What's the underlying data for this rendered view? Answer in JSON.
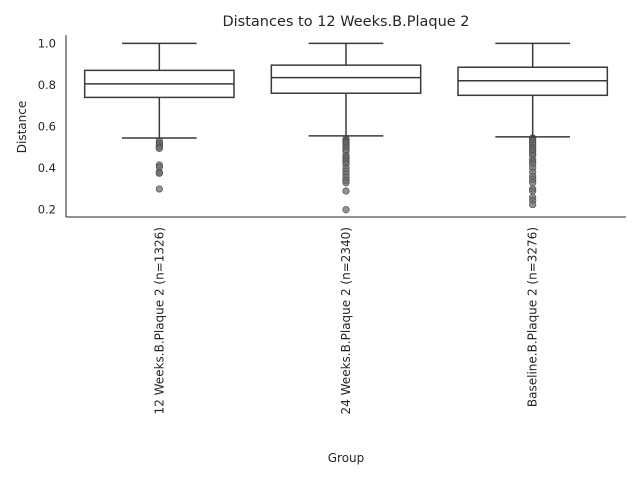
{
  "chart_data": {
    "type": "box",
    "title": "Distances to 12 Weeks.B.Plaque 2",
    "xlabel": "Group",
    "ylabel": "Distance",
    "ylim": [
      0.165,
      1.04
    ],
    "yticks": [
      0.2,
      0.4,
      0.6,
      0.8,
      1.0
    ],
    "ytick_labels": [
      "0.2",
      "0.4",
      "0.6",
      "0.8",
      "1.0"
    ],
    "grid": false,
    "colors": {
      "box_edge": "#3a3a3a",
      "box_fill": "#ffffff",
      "outlier": "#6e6e6e",
      "axis": "#262626"
    },
    "categories": [
      "12 Weeks.B.Plaque 2 (n=1326)",
      "24 Weeks.B.Plaque 2 (n=2340)",
      "Baseline.B.Plaque 2 (n=3276)"
    ],
    "boxes": [
      {
        "whisker_low": 0.545,
        "q1": 0.74,
        "median": 0.805,
        "q3": 0.87,
        "whisker_high": 1.0,
        "outliers": [
          0.53,
          0.52,
          0.51,
          0.5,
          0.495,
          0.415,
          0.405,
          0.38,
          0.375,
          0.3
        ]
      },
      {
        "whisker_low": 0.555,
        "q1": 0.76,
        "median": 0.835,
        "q3": 0.895,
        "whisker_high": 1.0,
        "outliers": [
          0.54,
          0.535,
          0.53,
          0.525,
          0.52,
          0.51,
          0.5,
          0.49,
          0.48,
          0.46,
          0.45,
          0.44,
          0.43,
          0.42,
          0.4,
          0.385,
          0.37,
          0.355,
          0.34,
          0.33,
          0.29,
          0.2
        ]
      },
      {
        "whisker_low": 0.55,
        "q1": 0.75,
        "median": 0.82,
        "q3": 0.885,
        "whisker_high": 1.0,
        "outliers": [
          0.545,
          0.54,
          0.53,
          0.52,
          0.51,
          0.5,
          0.49,
          0.48,
          0.47,
          0.46,
          0.44,
          0.43,
          0.42,
          0.4,
          0.38,
          0.36,
          0.345,
          0.33,
          0.3,
          0.29,
          0.26,
          0.245,
          0.225
        ]
      }
    ]
  }
}
